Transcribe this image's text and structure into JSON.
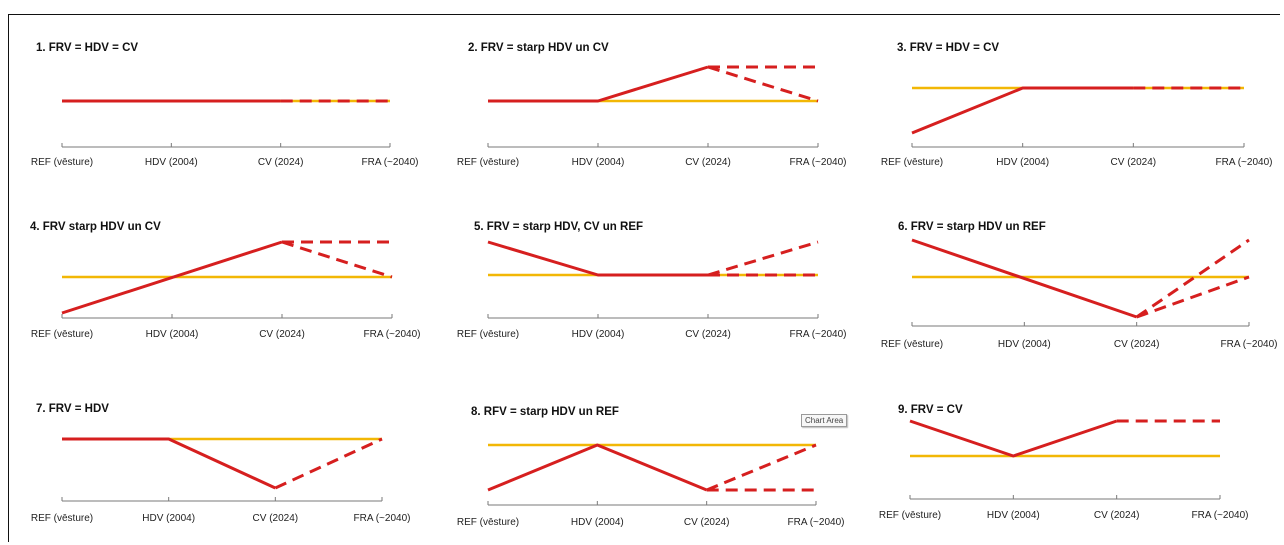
{
  "colors": {
    "yellow": "#f2b705",
    "red": "#d61f1f",
    "axis": "#7a7a7a",
    "frame": "#111111"
  },
  "tooltip": {
    "text": "Chart Area"
  },
  "chart_data": [
    {
      "type": "line",
      "title": "1.  FRV = HDV = CV",
      "categories": [
        "REF (vēsture)",
        "HDV (2004)",
        "CV (2024)",
        "FRA (~2040)"
      ],
      "series": [
        {
          "color": "yellow",
          "points": [
            [
              0,
              0
            ],
            [
              1,
              0
            ],
            [
              2,
              0
            ],
            [
              3,
              0
            ]
          ],
          "style": "solid"
        },
        {
          "color": "red",
          "points": [
            [
              0,
              0
            ],
            [
              1,
              0
            ],
            [
              2,
              0
            ]
          ],
          "style": "solid"
        },
        {
          "color": "red",
          "points": [
            [
              2,
              0
            ],
            [
              3,
              0
            ]
          ],
          "style": "dashed"
        }
      ]
    },
    {
      "type": "line",
      "title": "2.  FRV = starp HDV un CV",
      "categories": [
        "REF (vēsture)",
        "HDV (2004)",
        "CV (2024)",
        "FRA (~2040)"
      ],
      "series": [
        {
          "color": "yellow",
          "points": [
            [
              1,
              0
            ],
            [
              3,
              0
            ]
          ],
          "style": "solid"
        },
        {
          "color": "red",
          "points": [
            [
              0,
              0
            ],
            [
              1,
              0
            ],
            [
              2,
              1
            ]
          ],
          "style": "solid"
        },
        {
          "color": "red",
          "points": [
            [
              2,
              1
            ],
            [
              3,
              1
            ]
          ],
          "style": "dashed"
        },
        {
          "color": "red",
          "points": [
            [
              2,
              1
            ],
            [
              3,
              0
            ]
          ],
          "style": "dashed"
        }
      ]
    },
    {
      "type": "line",
      "title": "3.  FRV = HDV = CV",
      "categories": [
        "REF (vēsture)",
        "HDV (2004)",
        "CV (2024)",
        "FRA (~2040)"
      ],
      "series": [
        {
          "color": "yellow",
          "points": [
            [
              0,
              0
            ],
            [
              3,
              0
            ]
          ],
          "style": "solid"
        },
        {
          "color": "red",
          "points": [
            [
              0,
              -1
            ],
            [
              1,
              0
            ],
            [
              2,
              0
            ]
          ],
          "style": "solid"
        },
        {
          "color": "red",
          "points": [
            [
              2,
              0
            ],
            [
              3,
              0
            ]
          ],
          "style": "dashed"
        }
      ]
    },
    {
      "type": "line",
      "title": "4.  FRV starp HDV un CV",
      "categories": [
        "REF (vēsture)",
        "HDV (2004)",
        "CV (2024)",
        "FRA (~2040)"
      ],
      "series": [
        {
          "color": "yellow",
          "points": [
            [
              0,
              0
            ],
            [
              3,
              0
            ]
          ],
          "style": "solid"
        },
        {
          "color": "red",
          "points": [
            [
              0,
              -1
            ],
            [
              2,
              1
            ]
          ],
          "style": "solid"
        },
        {
          "color": "red",
          "points": [
            [
              2,
              1
            ],
            [
              3,
              1
            ]
          ],
          "style": "dashed"
        },
        {
          "color": "red",
          "points": [
            [
              2,
              1
            ],
            [
              3,
              0
            ]
          ],
          "style": "dashed"
        }
      ]
    },
    {
      "type": "line",
      "title": "5.  FRV = starp HDV, CV un REF",
      "categories": [
        "REF (vēsture)",
        "HDV (2004)",
        "CV (2024)",
        "FRA (~2040)"
      ],
      "series": [
        {
          "color": "yellow",
          "points": [
            [
              0,
              0
            ],
            [
              3,
              0
            ]
          ],
          "style": "solid"
        },
        {
          "color": "red",
          "points": [
            [
              0,
              1
            ],
            [
              1,
              0
            ],
            [
              2,
              0
            ]
          ],
          "style": "solid"
        },
        {
          "color": "red",
          "points": [
            [
              2,
              0
            ],
            [
              3,
              0
            ]
          ],
          "style": "dashed"
        },
        {
          "color": "red",
          "points": [
            [
              2,
              0
            ],
            [
              3,
              1
            ]
          ],
          "style": "dashed"
        }
      ]
    },
    {
      "type": "line",
      "title": "6.  FRV = starp HDV un REF",
      "categories": [
        "REF (vēsture)",
        "HDV (2004)",
        "CV (2024)",
        "FRA (~2040)"
      ],
      "series": [
        {
          "color": "yellow",
          "points": [
            [
              0,
              0
            ],
            [
              3,
              0
            ]
          ],
          "style": "solid"
        },
        {
          "color": "red",
          "points": [
            [
              0,
              1
            ],
            [
              2,
              -1
            ]
          ],
          "style": "solid"
        },
        {
          "color": "red",
          "points": [
            [
              2,
              -1
            ],
            [
              3,
              1
            ]
          ],
          "style": "dashed"
        },
        {
          "color": "red",
          "points": [
            [
              2,
              -1
            ],
            [
              3,
              0
            ]
          ],
          "style": "dashed"
        }
      ]
    },
    {
      "type": "line",
      "title": "7.  FRV = HDV",
      "categories": [
        "REF (vēsture)",
        "HDV (2004)",
        "CV (2024)",
        "FRA (~2040)"
      ],
      "series": [
        {
          "color": "yellow",
          "points": [
            [
              1,
              1
            ],
            [
              3,
              1
            ]
          ],
          "style": "solid"
        },
        {
          "color": "red",
          "points": [
            [
              0,
              1
            ],
            [
              1,
              1
            ],
            [
              2,
              0
            ]
          ],
          "style": "solid"
        },
        {
          "color": "red",
          "points": [
            [
              2,
              0
            ],
            [
              3,
              1
            ]
          ],
          "style": "dashed"
        }
      ]
    },
    {
      "type": "line",
      "title": "8.  RFV = starp HDV un REF",
      "categories": [
        "REF (vēsture)",
        "HDV (2004)",
        "CV (2024)",
        "FRA (~2040)"
      ],
      "series": [
        {
          "color": "yellow",
          "points": [
            [
              0,
              1
            ],
            [
              3,
              1
            ]
          ],
          "style": "solid"
        },
        {
          "color": "red",
          "points": [
            [
              0,
              0
            ],
            [
              1,
              1
            ],
            [
              2,
              0
            ]
          ],
          "style": "solid"
        },
        {
          "color": "red",
          "points": [
            [
              2,
              0
            ],
            [
              3,
              0
            ]
          ],
          "style": "dashed"
        },
        {
          "color": "red",
          "points": [
            [
              2,
              0
            ],
            [
              3,
              1
            ]
          ],
          "style": "dashed"
        }
      ]
    },
    {
      "type": "line",
      "title": "9.  FRV = CV",
      "categories": [
        "REF (vēsture)",
        "HDV (2004)",
        "CV (2024)",
        "FRA (~2040)"
      ],
      "series": [
        {
          "color": "yellow",
          "points": [
            [
              0,
              0
            ],
            [
              3,
              0
            ]
          ],
          "style": "solid"
        },
        {
          "color": "red",
          "points": [
            [
              0,
              1
            ],
            [
              1,
              0
            ],
            [
              2,
              1
            ]
          ],
          "style": "solid"
        },
        {
          "color": "red",
          "points": [
            [
              2,
              1
            ],
            [
              3,
              1
            ]
          ],
          "style": "dashed"
        }
      ]
    }
  ]
}
